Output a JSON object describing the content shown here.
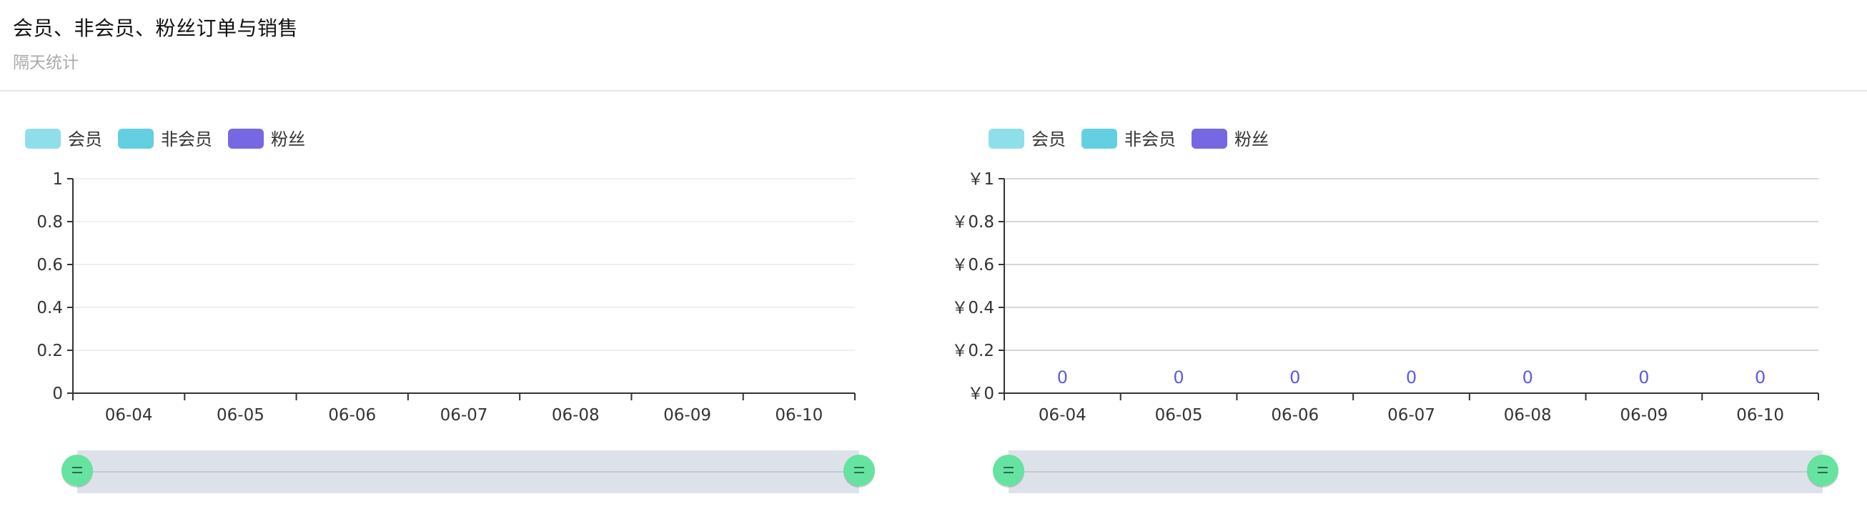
{
  "header": {
    "title": "会员、非会员、粉丝订单与销售",
    "subtitle": "隔天统计"
  },
  "colors": {
    "member": "#8fdfeb",
    "non_member": "#63d0e2",
    "fan": "#7667e3",
    "data_label": "#5b5ce0",
    "zoom_bg": "#dde2ea",
    "zoom_handle": "#66e3a0"
  },
  "chart_data": [
    {
      "type": "bar",
      "categories": [
        "06-04",
        "06-05",
        "06-06",
        "06-07",
        "06-08",
        "06-09",
        "06-10"
      ],
      "series": [
        {
          "name": "会员",
          "values": [
            0,
            0,
            0,
            0,
            0,
            0,
            0
          ]
        },
        {
          "name": "非会员",
          "values": [
            0,
            0,
            0,
            0,
            0,
            0,
            0
          ]
        },
        {
          "name": "粉丝",
          "values": [
            0,
            0,
            0,
            0,
            0,
            0,
            0
          ]
        }
      ],
      "y_ticks": [
        "0",
        "0.2",
        "0.4",
        "0.6",
        "0.8",
        "1"
      ],
      "ylim": [
        0,
        1
      ],
      "data_labels": [],
      "grid": true,
      "legend": "top-left",
      "zoom_range": [
        0,
        1
      ]
    },
    {
      "type": "bar",
      "categories": [
        "06-04",
        "06-05",
        "06-06",
        "06-07",
        "06-08",
        "06-09",
        "06-10"
      ],
      "series": [
        {
          "name": "会员",
          "values": [
            0,
            0,
            0,
            0,
            0,
            0,
            0
          ]
        },
        {
          "name": "非会员",
          "values": [
            0,
            0,
            0,
            0,
            0,
            0,
            0
          ]
        },
        {
          "name": "粉丝",
          "values": [
            0,
            0,
            0,
            0,
            0,
            0,
            0
          ]
        }
      ],
      "y_ticks": [
        "￥0",
        "￥0.2",
        "￥0.4",
        "￥0.6",
        "￥0.8",
        "￥1"
      ],
      "ylim": [
        0,
        1
      ],
      "data_labels": [
        "0",
        "0",
        "0",
        "0",
        "0",
        "0",
        "0"
      ],
      "grid": true,
      "legend": "top-left",
      "zoom_range": [
        0,
        1
      ]
    }
  ]
}
